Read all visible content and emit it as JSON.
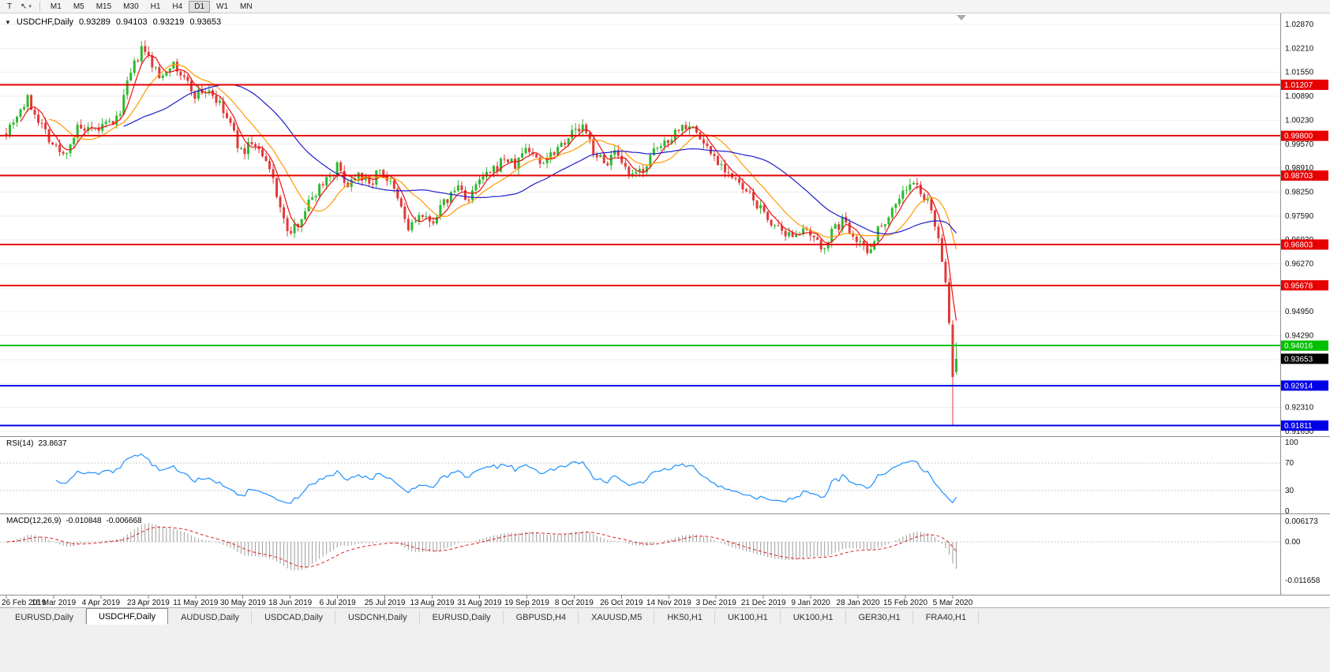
{
  "toolbar": {
    "tool_buttons": [
      {
        "name": "text-tool",
        "glyph": "T"
      },
      {
        "name": "cursor-tool",
        "glyph": "↖",
        "caret": "▾"
      }
    ],
    "timeframes": [
      "M1",
      "M5",
      "M15",
      "M30",
      "H1",
      "H4",
      "D1",
      "W1",
      "MN"
    ],
    "active_timeframe": "D1"
  },
  "chart_header": {
    "expander": "▼",
    "symbol": "USDCHF,Daily",
    "open": "0.93289",
    "high": "0.94103",
    "low": "0.93219",
    "close": "0.93653"
  },
  "rsi_header": {
    "label": "RSI(14)",
    "value": "23.8637"
  },
  "macd_header": {
    "label": "MACD(12,26,9)",
    "macd_value": "-0.010848",
    "signal_value": "-0.006668"
  },
  "bottom_tabs": {
    "active_index": 1,
    "tabs": [
      "EURUSD,Daily",
      "USDCHF,Daily",
      "AUDUSD,Daily",
      "USDCAD,Daily",
      "USDCNH,Daily",
      "EURUSD,Daily",
      "GBPUSD,H4",
      "XAUUSD,M5",
      "HK50,H1",
      "UK100,H1",
      "UK100,H1",
      "GER30,H1",
      "FRA40,H1"
    ]
  },
  "chart_data": {
    "type": "candlestick",
    "title": "USDCHF,Daily",
    "current_ohlc": {
      "open": 0.93289,
      "high": 0.94103,
      "low": 0.93219,
      "close": 0.93653
    },
    "y_axis": {
      "range": [
        0.9165,
        1.0287
      ],
      "ticks": [
        "1.02870",
        "1.02210",
        "1.01550",
        "1.00890",
        "1.00230",
        "0.99570",
        "0.98910",
        "0.98250",
        "0.97590",
        "0.96930",
        "0.96270",
        "0.95610",
        "0.94950",
        "0.94290",
        "0.93630",
        "0.92970",
        "0.92310",
        "0.91650"
      ]
    },
    "x_axis": {
      "num_days": 268,
      "days_per_label": 13.3,
      "labels": [
        "26 Feb 2019",
        "16 Mar 2019",
        "4 Apr 2019",
        "23 Apr 2019",
        "11 May 2019",
        "30 May 2019",
        "18 Jun 2019",
        "6 Jul 2019",
        "25 Jul 2019",
        "13 Aug 2019",
        "31 Aug 2019",
        "19 Sep 2019",
        "8 Oct 2019",
        "26 Oct 2019",
        "14 Nov 2019",
        "3 Dec 2019",
        "21 Dec 2019",
        "9 Jan 2020",
        "28 Jan 2020",
        "15 Feb 2020",
        "5 Mar 2020"
      ]
    },
    "horizontal_lines": [
      {
        "price": 1.01207,
        "label": "1.01207",
        "color": "#e60000"
      },
      {
        "price": 0.998,
        "label": "0.99800",
        "color": "#e60000"
      },
      {
        "price": 0.98703,
        "label": "0.98703",
        "color": "#e60000"
      },
      {
        "price": 0.96803,
        "label": "0.96803",
        "color": "#e60000"
      },
      {
        "price": 0.95678,
        "label": "0.95678",
        "color": "#e60000"
      },
      {
        "price": 0.94016,
        "label": "0.94016",
        "color": "#00c000"
      },
      {
        "price": 0.92914,
        "label": "0.92914",
        "color": "#0000e6"
      },
      {
        "price": 0.91811,
        "label": "0.91811",
        "color": "#0000e6"
      }
    ],
    "current_price_label": {
      "value": "0.93653",
      "price": 0.93653,
      "box_color": "#000000"
    },
    "candles": {
      "up_color": "#2eb82e",
      "down_color": "#e03a3a",
      "price_anchors": [
        [
          0,
          0.9995
        ],
        [
          3,
          1.004
        ],
        [
          6,
          1.0078
        ],
        [
          10,
          1.0012
        ],
        [
          13,
          0.9958
        ],
        [
          16,
          0.9925
        ],
        [
          20,
          0.9998
        ],
        [
          24,
          0.9988
        ],
        [
          27,
          1.0005
        ],
        [
          31,
          1.0022
        ],
        [
          35,
          1.015
        ],
        [
          38,
          1.0218
        ],
        [
          40,
          1.0195
        ],
        [
          43,
          1.014
        ],
        [
          46,
          1.018
        ],
        [
          49,
          1.015
        ],
        [
          53,
          1.0095
        ],
        [
          57,
          1.0108
        ],
        [
          60,
          1.0062
        ],
        [
          63,
          1.001
        ],
        [
          66,
          0.9932
        ],
        [
          69,
          0.9965
        ],
        [
          72,
          0.992
        ],
        [
          75,
          0.9862
        ],
        [
          78,
          0.9742
        ],
        [
          80,
          0.9706
        ],
        [
          83,
          0.9762
        ],
        [
          86,
          0.9812
        ],
        [
          89,
          0.9855
        ],
        [
          93,
          0.9895
        ],
        [
          96,
          0.9846
        ],
        [
          99,
          0.9886
        ],
        [
          102,
          0.9842
        ],
        [
          105,
          0.989
        ],
        [
          108,
          0.9845
        ],
        [
          111,
          0.978
        ],
        [
          113,
          0.9722
        ],
        [
          116,
          0.976
        ],
        [
          119,
          0.9738
        ],
        [
          123,
          0.9792
        ],
        [
          127,
          0.9842
        ],
        [
          130,
          0.9802
        ],
        [
          133,
          0.9856
        ],
        [
          137,
          0.9882
        ],
        [
          140,
          0.992
        ],
        [
          143,
          0.9896
        ],
        [
          146,
          0.995
        ],
        [
          150,
          0.9906
        ],
        [
          153,
          0.9932
        ],
        [
          156,
          0.9962
        ],
        [
          159,
          0.9988
        ],
        [
          162,
          1.0002
        ],
        [
          165,
          0.9942
        ],
        [
          168,
          0.9902
        ],
        [
          171,
          0.9932
        ],
        [
          173,
          0.9892
        ],
        [
          176,
          0.9862
        ],
        [
          179,
          0.9892
        ],
        [
          182,
          0.9932
        ],
        [
          186,
          0.9972
        ],
        [
          189,
          1.0002
        ],
        [
          192,
          1.0016
        ],
        [
          195,
          0.9972
        ],
        [
          199,
          0.9922
        ],
        [
          202,
          0.9892
        ],
        [
          205,
          0.9852
        ],
        [
          208,
          0.9822
        ],
        [
          211,
          0.9792
        ],
        [
          213,
          0.9762
        ],
        [
          216,
          0.9732
        ],
        [
          219,
          0.9692
        ],
        [
          222,
          0.9722
        ],
        [
          226,
          0.9702
        ],
        [
          229,
          0.9668
        ],
        [
          232,
          0.9712
        ],
        [
          235,
          0.9746
        ],
        [
          239,
          0.9702
        ],
        [
          242,
          0.9658
        ],
        [
          245,
          0.9722
        ],
        [
          248,
          0.9762
        ],
        [
          251,
          0.9812
        ],
        [
          253,
          0.9836
        ],
        [
          255,
          0.9846
        ],
        [
          257,
          0.9826
        ],
        [
          259,
          0.9792
        ],
        [
          261,
          0.9742
        ],
        [
          262,
          0.9702
        ],
        [
          263,
          0.9642
        ],
        [
          264,
          0.9562
        ],
        [
          265,
          0.9462
        ],
        [
          266,
          0.932
        ],
        [
          267,
          0.9365
        ]
      ],
      "final_candles": [
        {
          "open": 0.946,
          "high": 0.9472,
          "low": 0.91811,
          "close": 0.9315
        },
        {
          "open": 0.93289,
          "high": 0.94103,
          "low": 0.93219,
          "close": 0.93653
        }
      ]
    },
    "moving_averages": [
      {
        "period": 5,
        "color": "#ee1111"
      },
      {
        "period": 13,
        "color": "#ff9900"
      },
      {
        "period": 34,
        "color": "#1f1fd0"
      }
    ],
    "indicators": {
      "rsi": {
        "name": "RSI",
        "period": 14,
        "current": 23.8637,
        "line_color": "#1e90ff",
        "levels": [
          {
            "label": "100",
            "value": 100
          },
          {
            "label": "70",
            "value": 70
          },
          {
            "label": "30",
            "value": 30
          },
          {
            "label": "0",
            "value": 0
          }
        ],
        "dashed_levels": [
          70,
          30
        ]
      },
      "macd": {
        "name": "MACD",
        "fast": 12,
        "slow": 26,
        "signal_period": 9,
        "macd_current": -0.010848,
        "signal_current": -0.006668,
        "histogram_color": "#9c9c9c",
        "signal_color": "#dd2222",
        "scale_labels": [
          {
            "label": "0.006173",
            "value": 0.006173
          },
          {
            "label": "0.00",
            "value": 0
          },
          {
            "label": "-0.011658",
            "value": -0.011658
          }
        ]
      }
    },
    "grid_color": "#efefef"
  }
}
